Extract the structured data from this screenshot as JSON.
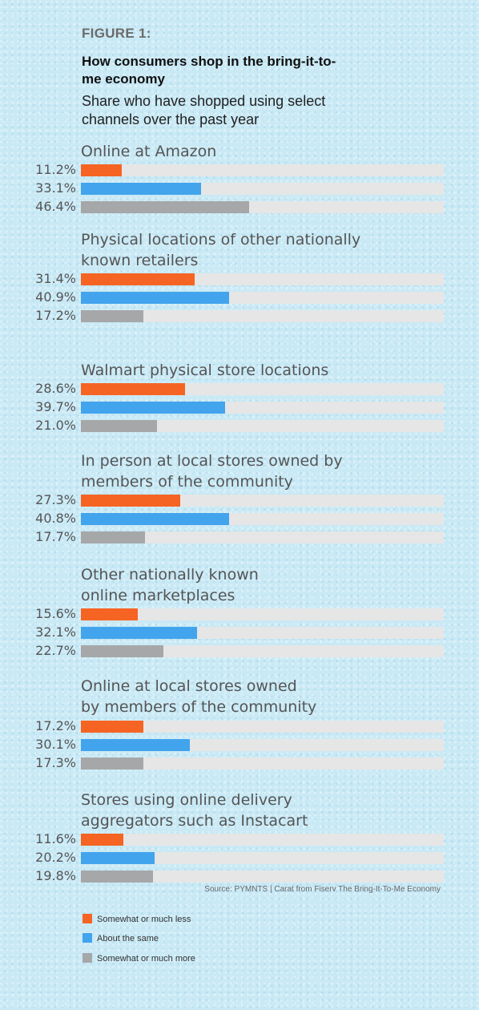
{
  "figure_label": "FIGURE 1:",
  "colors": {
    "less": "#f56423",
    "same": "#42a4ec",
    "more": "#a6a7a9",
    "track": "#e6e6e6"
  },
  "chart_data": {
    "type": "bar",
    "orientation": "horizontal",
    "title": "How consumers shop in the bring-it-to-me economy",
    "subtitle": "Share who have shopped using select channels over the past year",
    "source": "Source: PYMNTS | Carat from Fiserv The Bring-It-To-Me Economy",
    "xlim": [
      0,
      100
    ],
    "grid": false,
    "legend_position": "bottom-left",
    "categories": [
      "Online at Amazon",
      "Physical locations of other nationally known retailers",
      "Walmart physical store locations",
      "In person at local stores owned by members of the community",
      "Other nationally known online marketplaces",
      "Online at local stores owned by members of the community",
      "Stores using online delivery aggregators such as Instacart"
    ],
    "category_lines": [
      [
        "Online at Amazon"
      ],
      [
        "Physical locations of other nationally",
        "known retailers"
      ],
      [
        "Walmart physical store locations"
      ],
      [
        "In person at local stores owned by",
        "members of the community"
      ],
      [
        "Other nationally known",
        "online marketplaces"
      ],
      [
        "Online at local stores owned",
        "by members of the community"
      ],
      [
        "Stores using online delivery",
        "aggregators such as Instacart"
      ]
    ],
    "series": [
      {
        "name": "Somewhat or much less",
        "values": [
          11.2,
          31.4,
          28.6,
          27.3,
          15.6,
          17.2,
          11.6
        ],
        "labels": [
          "11.2%",
          "31.4%",
          "28.6%",
          "27.3%",
          "15.6%",
          "17.2%",
          "11.6%"
        ]
      },
      {
        "name": "About the same",
        "values": [
          33.1,
          40.9,
          39.7,
          40.8,
          32.1,
          30.1,
          20.2
        ],
        "labels": [
          "33.1%",
          "40.9%",
          "39.7%",
          "40.8%",
          "32.1%",
          "30.1%",
          "20.2%"
        ]
      },
      {
        "name": "Somewhat or much more",
        "values": [
          46.4,
          17.2,
          21.0,
          17.7,
          22.7,
          17.3,
          19.8
        ],
        "labels": [
          "46.4%",
          "17.2%",
          "21.0%",
          "17.7%",
          "22.7%",
          "17.3%",
          "19.8%"
        ]
      }
    ]
  }
}
